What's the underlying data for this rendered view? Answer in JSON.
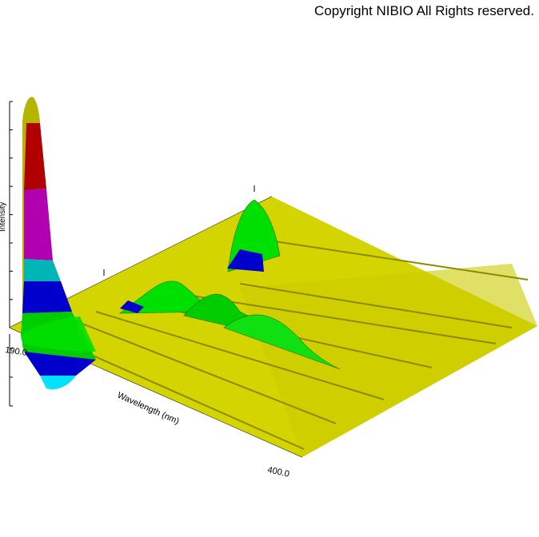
{
  "copyright": "Copyright NIBIO All Rights reserved.",
  "chart_data": {
    "type": "area",
    "description_kind": "3D surface / waterfall of UV absorption spectra",
    "xlabel": "Wavelength (nm)",
    "zlabel": "Intensity",
    "xlim": [
      190.0,
      400.0
    ],
    "x_tick_labels": [
      "190.0",
      "400.0"
    ],
    "color_bands": [
      "#ffff66",
      "#00cccc",
      "#0000cc",
      "#00cc00",
      "#b5b500",
      "#b00000",
      "#b000b0"
    ],
    "surface_color": "#d4d400",
    "main_peak": {
      "wavelength": 190.0,
      "relative_intensity": 1.0
    },
    "minor_peaks": [
      {
        "wavelength": 230.0,
        "relative_intensity": 0.12
      },
      {
        "wavelength": 255.0,
        "relative_intensity": 0.15
      },
      {
        "wavelength": 280.0,
        "relative_intensity": 0.1
      }
    ]
  }
}
